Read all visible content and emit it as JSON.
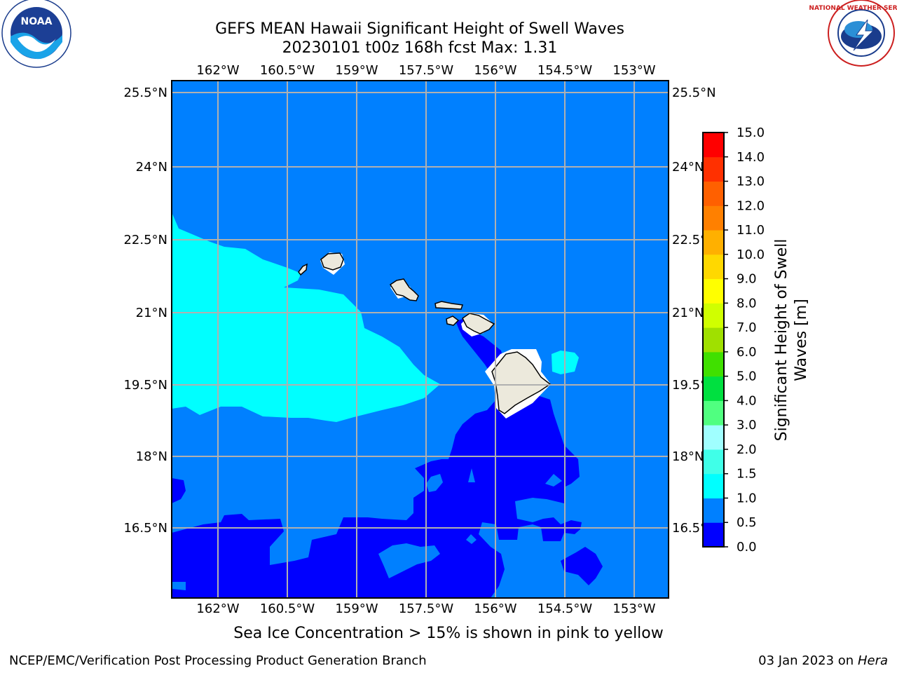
{
  "title_line1": "GEFS MEAN Hawaii Significant Height of Swell Waves",
  "title_line2": "20230101 t00z 168h fcst   Max: 1.31",
  "caption": "Sea Ice Concentration > 15% is shown in pink to yellow",
  "footer": {
    "left": "NCEP/EMC/Verification Post Processing Product Generation Branch",
    "date": "03 Jan 2023 on ",
    "host": "Hera"
  },
  "logos": {
    "left": {
      "name": "noaa-logo",
      "text": "NOAA"
    },
    "right": {
      "name": "nws-logo",
      "text": "NATIONAL WEATHER SERVICE"
    }
  },
  "map": {
    "lon_ticks": [
      "162°W",
      "160.5°W",
      "159°W",
      "157.5°W",
      "156°W",
      "154.5°W",
      "153°W"
    ],
    "lat_ticks": [
      "25.5°N",
      "24°N",
      "22.5°N",
      "21°N",
      "19.5°N",
      "18°N",
      "16.5°N"
    ],
    "lon_range": [
      -163,
      -152.3
    ],
    "lat_range": [
      15.3,
      25.75
    ]
  },
  "colorbar": {
    "label": "Significant Height of Swell Waves [m]",
    "label_line1": "Significant Height of Swell",
    "label_line2": "Waves [m]",
    "ticks": [
      "0.0",
      "0.5",
      "1.0",
      "1.5",
      "2.0",
      "3.0",
      "4.0",
      "5.0",
      "6.0",
      "7.0",
      "8.0",
      "9.0",
      "10.0",
      "11.0",
      "12.0",
      "13.0",
      "14.0",
      "15.0"
    ],
    "colors": [
      "#0000ff",
      "#0080ff",
      "#00ffff",
      "#40ffe8",
      "#a0ffff",
      "#50ff80",
      "#00e040",
      "#40e000",
      "#a0e000",
      "#d0ff00",
      "#ffff00",
      "#ffd800",
      "#ffb000",
      "#ff8000",
      "#ff6000",
      "#ff3000",
      "#ff0000"
    ],
    "ocean_fill": "#0080ff",
    "land_fill": "#ece9dc"
  }
}
